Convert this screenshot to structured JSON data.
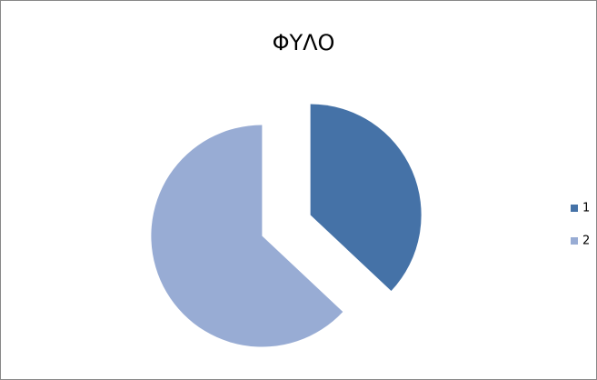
{
  "chart_data": {
    "type": "pie",
    "title": "ΦΥΛΟ",
    "categories": [
      "1",
      "2"
    ],
    "values": [
      37,
      63
    ],
    "colors": [
      "#4572a7",
      "#98acd4"
    ],
    "legend": "right",
    "exploded": true
  }
}
